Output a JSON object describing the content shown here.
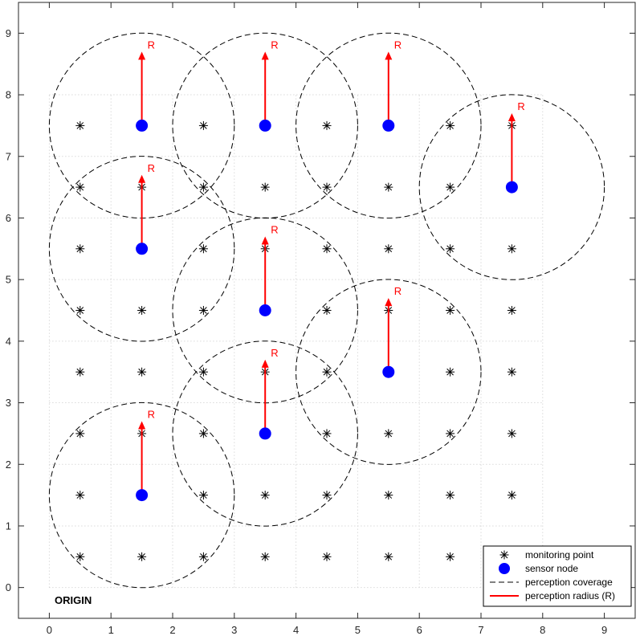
{
  "chart_data": {
    "type": "scatter",
    "xlim": [
      -0.5,
      9.5
    ],
    "ylim": [
      -0.5,
      9.5
    ],
    "xticks": [
      "0",
      "1",
      "2",
      "3",
      "4",
      "5",
      "6",
      "7",
      "8",
      "9"
    ],
    "yticks": [
      "0",
      "1",
      "2",
      "3",
      "4",
      "5",
      "6",
      "7",
      "8",
      "9"
    ],
    "grid": "dotted, 0 to 8 on both axes",
    "perception_radius": 1.5,
    "arrow_length": 1.2,
    "radius_label": "R",
    "annotation": "ORIGIN",
    "monitoring_points": [
      [
        0.5,
        7.5
      ],
      [
        2.5,
        7.5
      ],
      [
        4.5,
        7.5
      ],
      [
        6.5,
        7.5
      ],
      [
        7.5,
        7.5
      ],
      [
        0.5,
        6.5
      ],
      [
        1.5,
        6.5
      ],
      [
        2.5,
        6.5
      ],
      [
        3.5,
        6.5
      ],
      [
        4.5,
        6.5
      ],
      [
        5.5,
        6.5
      ],
      [
        6.5,
        6.5
      ],
      [
        0.5,
        5.5
      ],
      [
        2.5,
        5.5
      ],
      [
        3.5,
        5.5
      ],
      [
        4.5,
        5.5
      ],
      [
        5.5,
        5.5
      ],
      [
        6.5,
        5.5
      ],
      [
        7.5,
        5.5
      ],
      [
        0.5,
        4.5
      ],
      [
        1.5,
        4.5
      ],
      [
        2.5,
        4.5
      ],
      [
        4.5,
        4.5
      ],
      [
        5.5,
        4.5
      ],
      [
        6.5,
        4.5
      ],
      [
        7.5,
        4.5
      ],
      [
        0.5,
        3.5
      ],
      [
        1.5,
        3.5
      ],
      [
        2.5,
        3.5
      ],
      [
        3.5,
        3.5
      ],
      [
        4.5,
        3.5
      ],
      [
        6.5,
        3.5
      ],
      [
        7.5,
        3.5
      ],
      [
        0.5,
        2.5
      ],
      [
        1.5,
        2.5
      ],
      [
        2.5,
        2.5
      ],
      [
        4.5,
        2.5
      ],
      [
        5.5,
        2.5
      ],
      [
        6.5,
        2.5
      ],
      [
        7.5,
        2.5
      ],
      [
        0.5,
        1.5
      ],
      [
        2.5,
        1.5
      ],
      [
        3.5,
        1.5
      ],
      [
        4.5,
        1.5
      ],
      [
        5.5,
        1.5
      ],
      [
        6.5,
        1.5
      ],
      [
        7.5,
        1.5
      ],
      [
        0.5,
        0.5
      ],
      [
        1.5,
        0.5
      ],
      [
        2.5,
        0.5
      ],
      [
        3.5,
        0.5
      ],
      [
        4.5,
        0.5
      ],
      [
        5.5,
        0.5
      ],
      [
        6.5,
        0.5
      ]
    ],
    "sensor_nodes": [
      [
        1.5,
        7.5
      ],
      [
        3.5,
        7.5
      ],
      [
        5.5,
        7.5
      ],
      [
        7.5,
        6.5
      ],
      [
        1.5,
        5.5
      ],
      [
        3.5,
        4.5
      ],
      [
        5.5,
        3.5
      ],
      [
        3.5,
        2.5
      ],
      [
        1.5,
        1.5
      ]
    ],
    "legend": {
      "position": "bottom-right",
      "entries": [
        {
          "label": "monitoring point",
          "marker": "asterisk",
          "color": "#000000"
        },
        {
          "label": "sensor node",
          "marker": "filled-circle",
          "color": "#0000ff"
        },
        {
          "label": "perception coverage",
          "marker": "dashed-line",
          "color": "#000000"
        },
        {
          "label": "perception radius (R)",
          "marker": "solid-line",
          "color": "#ff0000"
        }
      ]
    },
    "colors": {
      "sensor": "#0000ff",
      "arrow": "#ff0000",
      "coverage": "#000000",
      "grid": "#c8c8c8",
      "axis": "#262626"
    }
  }
}
